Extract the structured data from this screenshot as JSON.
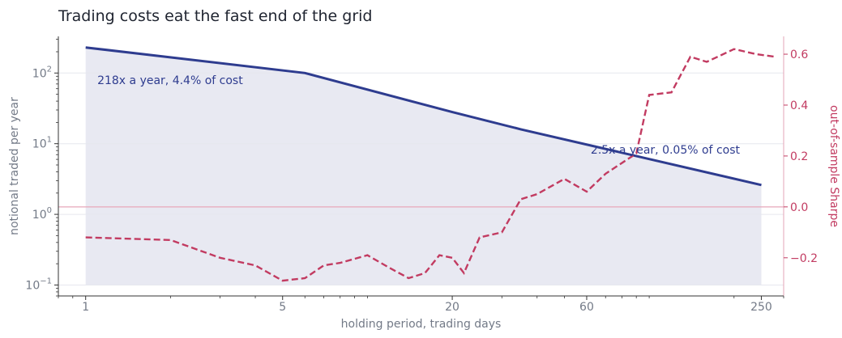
{
  "chart_data": {
    "type": "line",
    "title": "Trading costs eat the fast end of the grid",
    "xlabel": "holding period, trading days",
    "ylabel_left": "notional traded per year",
    "ylabel_right": "out-of-sample Sharpe",
    "x_scale": "log",
    "y_left_scale": "log",
    "xlim": [
      0.8,
      300
    ],
    "ylim_left": [
      0.07,
      330
    ],
    "ylim_right": [
      -0.35,
      0.67
    ],
    "x_ticks": [
      {
        "value": 1,
        "label": "1"
      },
      {
        "value": 5,
        "label": "5"
      },
      {
        "value": 20,
        "label": "20"
      },
      {
        "value": 60,
        "label": "60"
      },
      {
        "value": 250,
        "label": "250"
      }
    ],
    "y_left_ticks": [
      {
        "value": 0.1,
        "base": "10",
        "exp": "−1"
      },
      {
        "value": 1,
        "base": "10",
        "exp": "0"
      },
      {
        "value": 10,
        "base": "10",
        "exp": "1"
      },
      {
        "value": 100,
        "base": "10",
        "exp": "2"
      }
    ],
    "y_right_ticks": [
      {
        "value": -0.2,
        "label": "−0.2"
      },
      {
        "value": 0.0,
        "label": "0.0"
      },
      {
        "value": 0.2,
        "label": "0.2"
      },
      {
        "value": 0.4,
        "label": "0.4"
      },
      {
        "value": 0.6,
        "label": "0.6"
      }
    ],
    "reference_line_right": 0.0,
    "grid": "horizontal",
    "colors": {
      "turnover": "#2e3c8f",
      "sharpe": "#c23b61",
      "fill": "#e8e9f2"
    },
    "series": [
      {
        "axis": "left",
        "style": "solid",
        "x": [
          1,
          6,
          20,
          35,
          250
        ],
        "values": [
          230,
          100,
          28,
          16,
          2.6
        ]
      },
      {
        "axis": "right",
        "style": "dashed",
        "x": [
          1,
          2,
          3,
          4,
          5,
          6,
          7,
          8,
          10,
          12,
          14,
          16,
          18,
          20,
          22,
          25,
          30,
          35,
          40,
          50,
          60,
          70,
          90,
          100,
          120,
          140,
          160,
          200,
          240,
          280
        ],
        "values": [
          -0.12,
          -0.13,
          -0.2,
          -0.23,
          -0.29,
          -0.28,
          -0.23,
          -0.22,
          -0.19,
          -0.24,
          -0.28,
          -0.26,
          -0.19,
          -0.2,
          -0.26,
          -0.12,
          -0.1,
          0.03,
          0.05,
          0.11,
          0.06,
          0.13,
          0.21,
          0.44,
          0.45,
          0.59,
          0.57,
          0.62,
          0.6,
          0.59
        ]
      }
    ],
    "annotations": [
      {
        "text": "218x a year, 4.4% of cost",
        "x": 1.1,
        "y": 70,
        "axis": "left",
        "color": "#2e3c8f"
      },
      {
        "text": "2.5x a year, 0.05% of cost",
        "x": 62,
        "y": 7.2,
        "axis": "left",
        "color": "#2e3c8f"
      }
    ]
  }
}
